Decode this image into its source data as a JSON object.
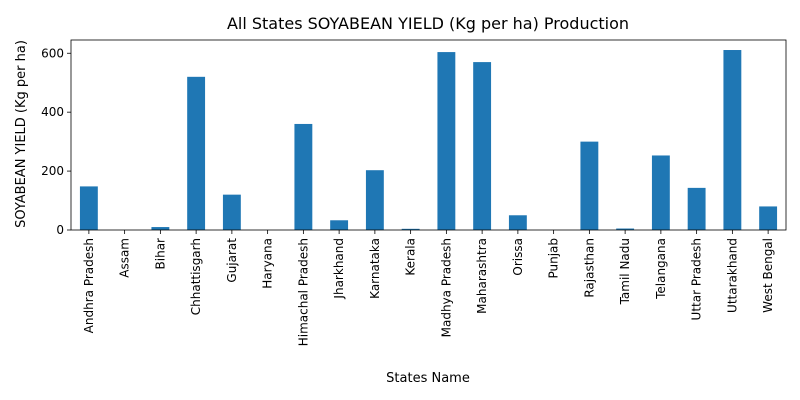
{
  "chart_data": {
    "type": "bar",
    "title": "All States SOYABEAN YIELD (Kg per ha) Production",
    "xlabel": "States Name",
    "ylabel": "SOYABEAN YIELD (Kg per ha)",
    "ylim": [
      0,
      645
    ],
    "yticks": [
      0,
      200,
      400,
      600
    ],
    "grid": false,
    "bar_color": "#1f77b4",
    "categories": [
      "Andhra Pradesh",
      "Assam",
      "Bihar",
      "Chhattisgarh",
      "Gujarat",
      "Haryana",
      "Himachal Pradesh",
      "Jharkhand",
      "Karnataka",
      "Kerala",
      "Madhya Pradesh",
      "Maharashtra",
      "Orissa",
      "Punjab",
      "Rajasthan",
      "Tamil Nadu",
      "Telangana",
      "Uttar Pradesh",
      "Uttarakhand",
      "West Bengal"
    ],
    "values": [
      148,
      0,
      10,
      520,
      120,
      0,
      360,
      33,
      203,
      4,
      604,
      570,
      50,
      0,
      300,
      5,
      253,
      143,
      611,
      80
    ]
  }
}
